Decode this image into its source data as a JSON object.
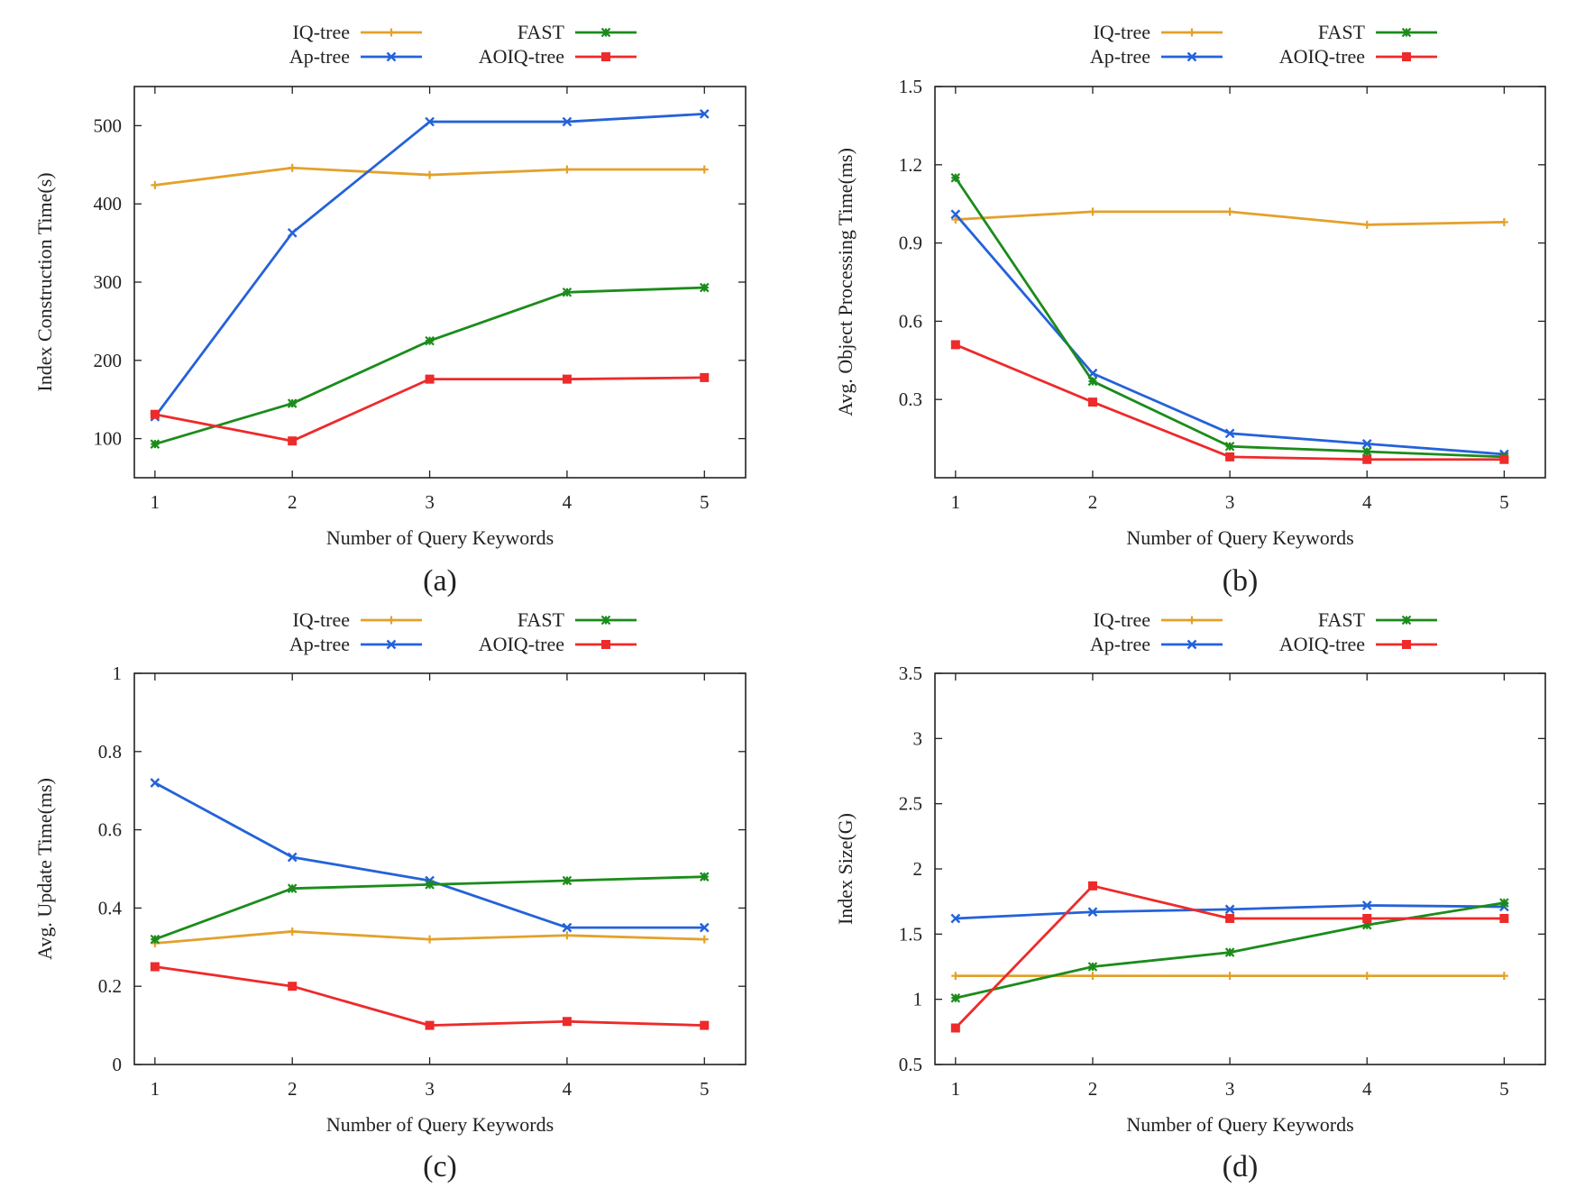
{
  "legend_order": [
    "IQ-tree",
    "FAST",
    "Ap-tree",
    "AOIQ-tree"
  ],
  "colors": {
    "IQ-tree": "#e3a12b",
    "Ap-tree": "#2462d9",
    "FAST": "#1b8c1b",
    "AOIQ-tree": "#ee2a2a"
  },
  "chart_data": [
    {
      "type": "line",
      "panel": "a",
      "caption": "(a)",
      "xlabel": "Number of Query Keywords",
      "ylabel": "Index Construction Time(s)",
      "x": [
        1,
        2,
        3,
        4,
        5
      ],
      "xticks": [
        "1",
        "2",
        "3",
        "4",
        "5"
      ],
      "xlim": [
        0.85,
        5.3
      ],
      "ylim": [
        50,
        550
      ],
      "yticks": [
        100,
        200,
        300,
        400,
        500
      ],
      "yticklabels": [
        "100",
        "200",
        "300",
        "400",
        "500"
      ],
      "series": [
        {
          "name": "IQ-tree",
          "values": [
            424,
            446,
            437,
            444,
            444
          ]
        },
        {
          "name": "Ap-tree",
          "values": [
            128,
            363,
            505,
            505,
            515
          ]
        },
        {
          "name": "FAST",
          "values": [
            93,
            145,
            225,
            287,
            293
          ]
        },
        {
          "name": "AOIQ-tree",
          "values": [
            131,
            97,
            176,
            176,
            178
          ]
        }
      ]
    },
    {
      "type": "line",
      "panel": "b",
      "caption": "(b)",
      "xlabel": "Number of Query Keywords",
      "ylabel": "Avg. Object Processing Time(ms)",
      "x": [
        1,
        2,
        3,
        4,
        5
      ],
      "xticks": [
        "1",
        "2",
        "3",
        "4",
        "5"
      ],
      "xlim": [
        0.85,
        5.3
      ],
      "ylim": [
        0.0,
        1.5
      ],
      "yticks": [
        0.3,
        0.6,
        0.9,
        1.2,
        1.5
      ],
      "yticklabels": [
        "0.3",
        "0.6",
        "0.9",
        "1.2",
        "1.5"
      ],
      "series": [
        {
          "name": "IQ-tree",
          "values": [
            0.99,
            1.02,
            1.02,
            0.97,
            0.98
          ]
        },
        {
          "name": "Ap-tree",
          "values": [
            1.01,
            0.4,
            0.17,
            0.13,
            0.09
          ]
        },
        {
          "name": "FAST",
          "values": [
            1.15,
            0.37,
            0.12,
            0.1,
            0.08
          ]
        },
        {
          "name": "AOIQ-tree",
          "values": [
            0.51,
            0.29,
            0.08,
            0.07,
            0.07
          ]
        }
      ]
    },
    {
      "type": "line",
      "panel": "c",
      "caption": "(c)",
      "xlabel": "Number of Query Keywords",
      "ylabel": "Avg. Update Time(ms)",
      "x": [
        1,
        2,
        3,
        4,
        5
      ],
      "xticks": [
        "1",
        "2",
        "3",
        "4",
        "5"
      ],
      "xlim": [
        0.85,
        5.3
      ],
      "ylim": [
        0,
        1
      ],
      "yticks": [
        0,
        0.2,
        0.4,
        0.6,
        0.8,
        1
      ],
      "yticklabels": [
        "0",
        "0.2",
        "0.4",
        "0.6",
        "0.8",
        "1"
      ],
      "series": [
        {
          "name": "IQ-tree",
          "values": [
            0.31,
            0.34,
            0.32,
            0.33,
            0.32
          ]
        },
        {
          "name": "Ap-tree",
          "values": [
            0.72,
            0.53,
            0.47,
            0.35,
            0.35
          ]
        },
        {
          "name": "FAST",
          "values": [
            0.32,
            0.45,
            0.46,
            0.47,
            0.48
          ]
        },
        {
          "name": "AOIQ-tree",
          "values": [
            0.25,
            0.2,
            0.1,
            0.11,
            0.1
          ]
        }
      ]
    },
    {
      "type": "line",
      "panel": "d",
      "caption": "(d)",
      "xlabel": "Number of Query Keywords",
      "ylabel": "Index Size(G)",
      "x": [
        1,
        2,
        3,
        4,
        5
      ],
      "xticks": [
        "1",
        "2",
        "3",
        "4",
        "5"
      ],
      "xlim": [
        0.85,
        5.3
      ],
      "ylim": [
        0.5,
        3.5
      ],
      "yticks": [
        0.5,
        1,
        1.5,
        2,
        2.5,
        3,
        3.5
      ],
      "yticklabels": [
        "0.5",
        "1",
        "1.5",
        "2",
        "2.5",
        "3",
        "3.5"
      ],
      "series": [
        {
          "name": "IQ-tree",
          "values": [
            1.18,
            1.18,
            1.18,
            1.18,
            1.18
          ]
        },
        {
          "name": "Ap-tree",
          "values": [
            1.62,
            1.67,
            1.69,
            1.72,
            1.71
          ]
        },
        {
          "name": "FAST",
          "values": [
            1.01,
            1.25,
            1.36,
            1.57,
            1.74
          ]
        },
        {
          "name": "AOIQ-tree",
          "values": [
            0.78,
            1.87,
            1.62,
            1.62,
            1.62
          ]
        }
      ]
    }
  ]
}
